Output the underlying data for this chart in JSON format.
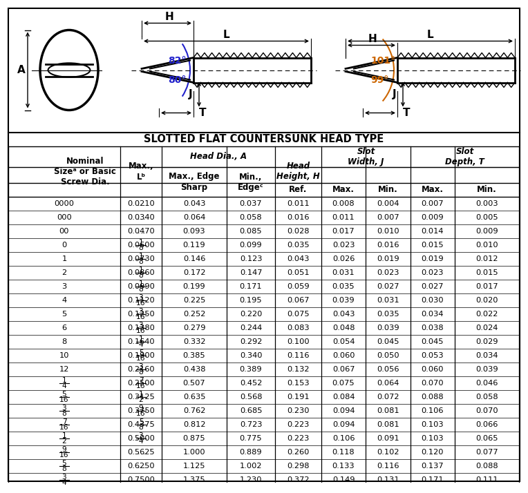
{
  "title": "SLOTTED FLAT COUNTERSUNK HEAD TYPE",
  "angle_color_left": "#2222cc",
  "angle_color_right": "#cc6600",
  "bg_color": "#ffffff",
  "rows": [
    [
      "0000",
      "0.0210",
      "...",
      "0.043",
      "0.037",
      "0.011",
      "0.008",
      "0.004",
      "0.007",
      "0.003"
    ],
    [
      "000",
      "0.0340",
      "...",
      "0.064",
      "0.058",
      "0.016",
      "0.011",
      "0.007",
      "0.009",
      "0.005"
    ],
    [
      "00",
      "0.0470",
      "...",
      "0.093",
      "0.085",
      "0.028",
      "0.017",
      "0.010",
      "0.014",
      "0.009"
    ],
    [
      "0",
      "0.0600",
      "1/8",
      "0.119",
      "0.099",
      "0.035",
      "0.023",
      "0.016",
      "0.015",
      "0.010"
    ],
    [
      "1",
      "0.0730",
      "1/8",
      "0.146",
      "0.123",
      "0.043",
      "0.026",
      "0.019",
      "0.019",
      "0.012"
    ],
    [
      "2",
      "0.0860",
      "1/8",
      "0.172",
      "0.147",
      "0.051",
      "0.031",
      "0.023",
      "0.023",
      "0.015"
    ],
    [
      "3",
      "0.0990",
      "1/8",
      "0.199",
      "0.171",
      "0.059",
      "0.035",
      "0.027",
      "0.027",
      "0.017"
    ],
    [
      "4",
      "0.1120",
      "3/16",
      "0.225",
      "0.195",
      "0.067",
      "0.039",
      "0.031",
      "0.030",
      "0.020"
    ],
    [
      "5",
      "0.1250",
      "3/16",
      "0.252",
      "0.220",
      "0.075",
      "0.043",
      "0.035",
      "0.034",
      "0.022"
    ],
    [
      "6",
      "0.1380",
      "3/16",
      "0.279",
      "0.244",
      "0.083",
      "0.048",
      "0.039",
      "0.038",
      "0.024"
    ],
    [
      "8",
      "0.1640",
      "1/4",
      "0.332",
      "0.292",
      "0.100",
      "0.054",
      "0.045",
      "0.045",
      "0.029"
    ],
    [
      "10",
      "0.1900",
      "5/16",
      "0.385",
      "0.340",
      "0.116",
      "0.060",
      "0.050",
      "0.053",
      "0.034"
    ],
    [
      "12",
      "0.2160",
      "3/8",
      "0.438",
      "0.389",
      "0.132",
      "0.067",
      "0.056",
      "0.060",
      "0.039"
    ],
    [
      "1/4",
      "0.2500",
      "7/16",
      "0.507",
      "0.452",
      "0.153",
      "0.075",
      "0.064",
      "0.070",
      "0.046"
    ],
    [
      "5/16",
      "0.3125",
      "1/2",
      "0.635",
      "0.568",
      "0.191",
      "0.084",
      "0.072",
      "0.088",
      "0.058"
    ],
    [
      "3/8",
      "0.3750",
      "9/16",
      "0.762",
      "0.685",
      "0.230",
      "0.094",
      "0.081",
      "0.106",
      "0.070"
    ],
    [
      "7/16",
      "0.4375",
      "5/8",
      "0.812",
      "0.723",
      "0.223",
      "0.094",
      "0.081",
      "0.103",
      "0.066"
    ],
    [
      "1/2",
      "0.5000",
      "3/4",
      "0.875",
      "0.775",
      "0.223",
      "0.106",
      "0.091",
      "0.103",
      "0.065"
    ],
    [
      "9/16",
      "0.5625",
      "...",
      "1.000",
      "0.889",
      "0.260",
      "0.118",
      "0.102",
      "0.120",
      "0.077"
    ],
    [
      "5/8",
      "0.6250",
      "...",
      "1.125",
      "1.002",
      "0.298",
      "0.133",
      "0.116",
      "0.137",
      "0.088"
    ],
    [
      "3/4",
      "0.7500",
      "...",
      "1.375",
      "1.230",
      "0.372",
      "0.149",
      "0.131",
      "0.171",
      "0.111"
    ]
  ]
}
